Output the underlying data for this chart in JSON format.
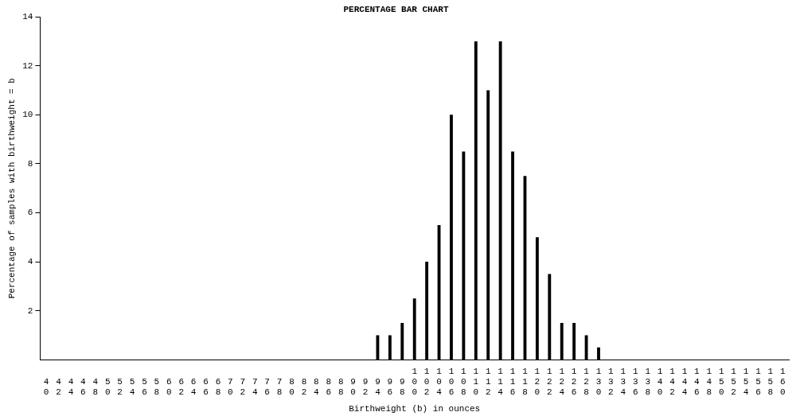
{
  "chart_data": {
    "type": "bar",
    "title": "PERCENTAGE BAR CHART",
    "xlabel": "Birthweight (b) in ounces",
    "ylabel": "Percentage of samples with birthweight = b",
    "categories": [
      "40",
      "42",
      "44",
      "46",
      "48",
      "50",
      "52",
      "54",
      "56",
      "58",
      "60",
      "62",
      "64",
      "66",
      "68",
      "70",
      "72",
      "74",
      "76",
      "78",
      "80",
      "82",
      "84",
      "86",
      "88",
      "90",
      "92",
      "94",
      "96",
      "98",
      "100",
      "102",
      "104",
      "106",
      "108",
      "110",
      "112",
      "114",
      "116",
      "118",
      "120",
      "122",
      "124",
      "126",
      "128",
      "130",
      "132",
      "134",
      "136",
      "138",
      "140",
      "142",
      "144",
      "146",
      "148",
      "150",
      "152",
      "154",
      "156",
      "158",
      "160"
    ],
    "values": [
      0,
      0,
      0,
      0,
      0,
      0,
      0,
      0,
      0,
      0,
      0,
      0,
      0,
      0,
      0,
      0,
      0,
      0,
      0,
      0,
      0,
      0,
      0,
      0,
      0,
      0,
      0,
      1,
      1,
      1.5,
      2.5,
      4,
      5.5,
      10,
      8.5,
      13,
      11,
      13,
      8.5,
      7.5,
      5,
      3.5,
      1.5,
      1.5,
      1,
      0.5,
      0,
      0,
      0,
      0,
      0,
      0,
      0,
      0,
      0,
      0,
      0,
      0,
      0,
      0,
      0
    ],
    "color": "#000000",
    "ylim": [
      0,
      14
    ],
    "yticks": [
      2,
      4,
      6,
      8,
      10,
      12,
      14
    ],
    "grid": false,
    "legend": false
  }
}
